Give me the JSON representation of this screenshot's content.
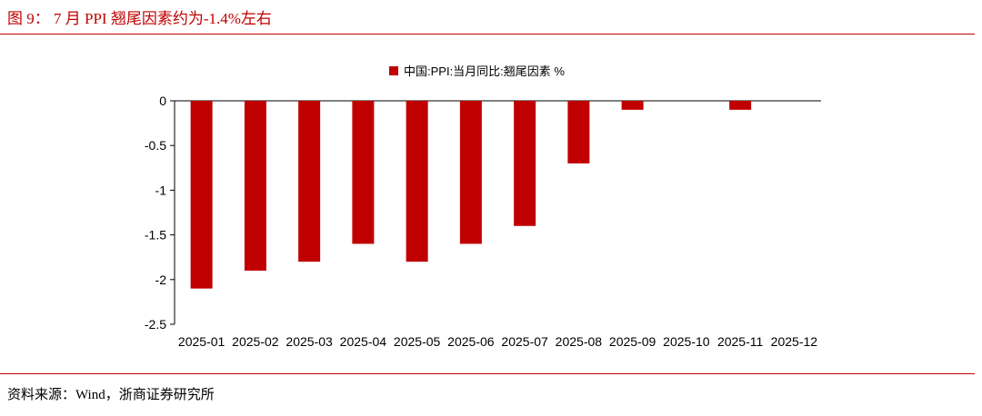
{
  "figure": {
    "title": "图 9：  7 月 PPI 翘尾因素约为-1.4%左右",
    "source": "资料来源：Wind，浙商证券研究所"
  },
  "colors": {
    "accent": "#c00000",
    "bar": "#c00000",
    "axis": "#000000"
  },
  "chart_data": {
    "type": "bar",
    "categories": [
      "2025-01",
      "2025-02",
      "2025-03",
      "2025-04",
      "2025-05",
      "2025-06",
      "2025-07",
      "2025-08",
      "2025-09",
      "2025-10",
      "2025-11",
      "2025-12"
    ],
    "series": [
      {
        "name": "中国:PPI:当月同比:翘尾因素 %",
        "values": [
          -2.1,
          -1.9,
          -1.8,
          -1.6,
          -1.8,
          -1.6,
          -1.4,
          -0.7,
          -0.1,
          0,
          -0.1,
          0
        ]
      }
    ],
    "ylim": [
      -2.5,
      0
    ],
    "yticks": [
      "0",
      "-0.5",
      "-1",
      "-1.5",
      "-2",
      "-2.5"
    ],
    "legend": "top-center",
    "grid": false
  }
}
